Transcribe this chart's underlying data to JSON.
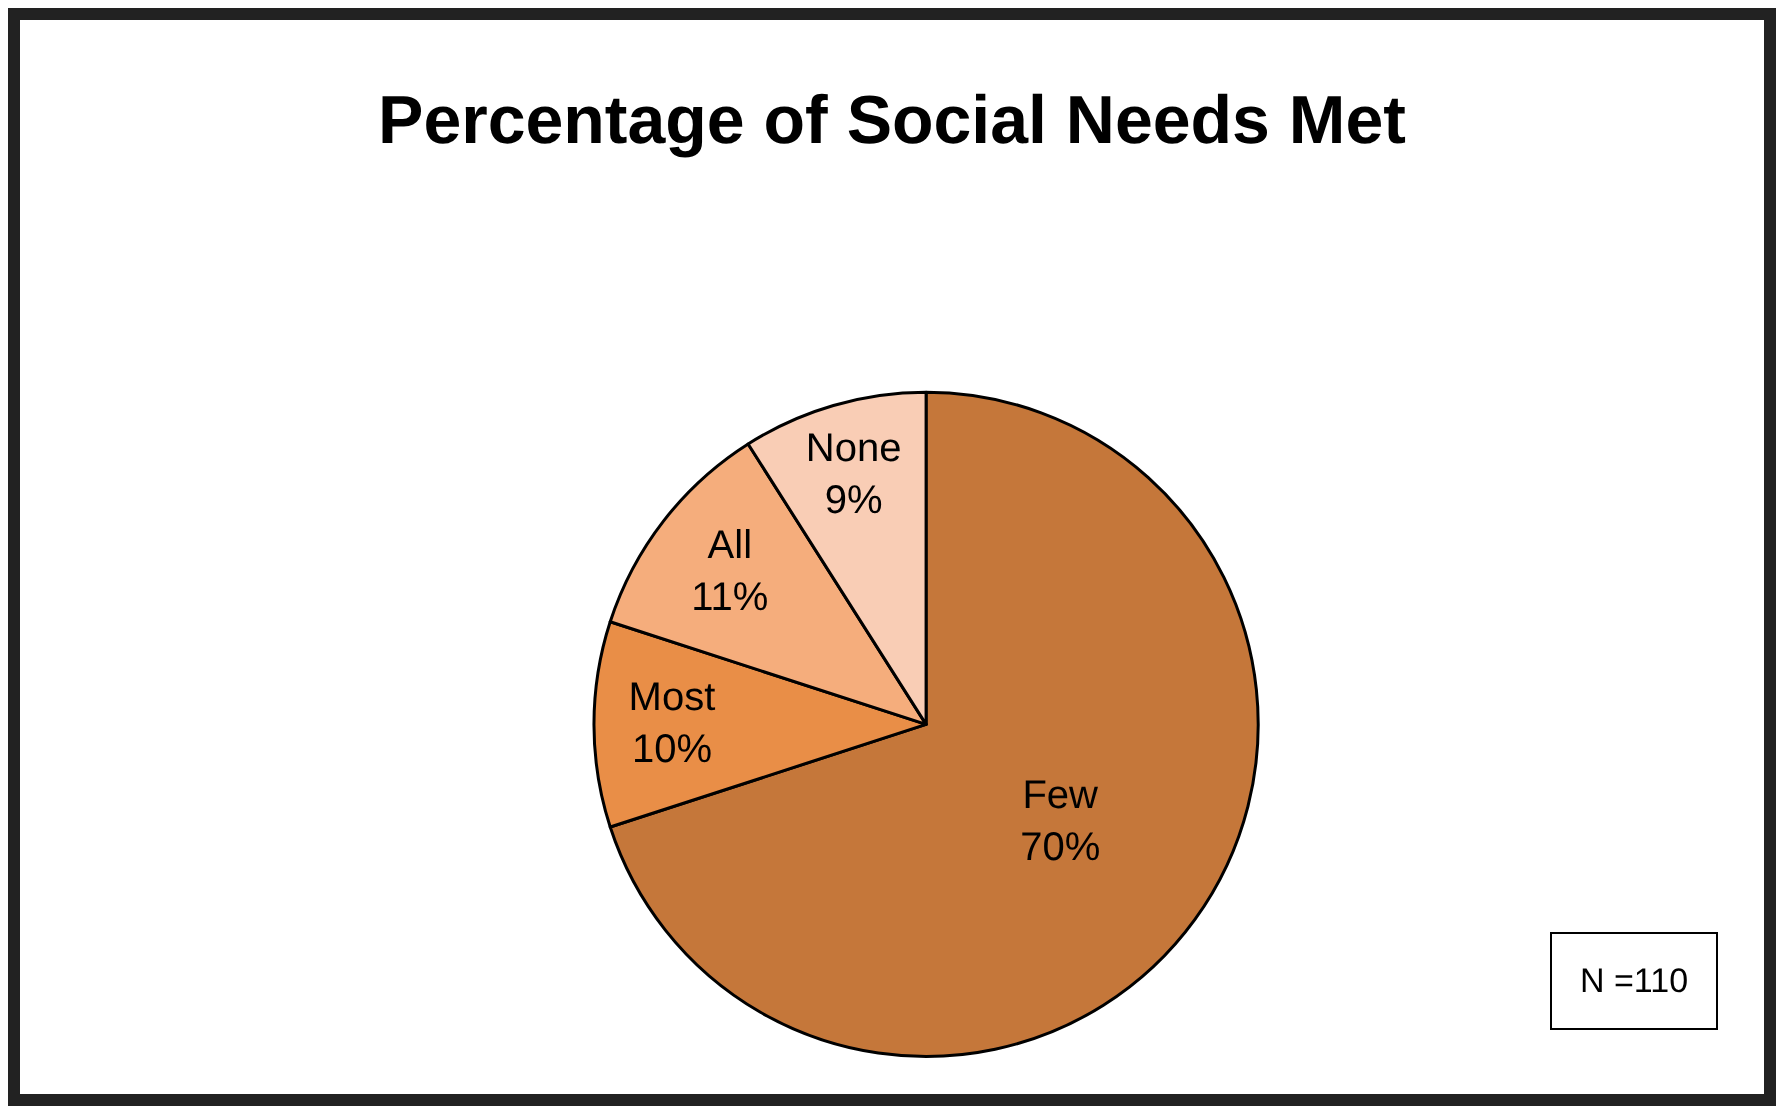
{
  "chart_data": {
    "type": "pie",
    "title": "Percentage of Social Needs Met",
    "categories": [
      "Few",
      "Most",
      "All",
      "None"
    ],
    "values": [
      70,
      10,
      11,
      9
    ],
    "value_labels": [
      "70%",
      "10%",
      "11%",
      "9%"
    ],
    "colors": [
      "#c5773a",
      "#e98e47",
      "#f5ad7c",
      "#f9cdb5"
    ],
    "legend": false,
    "annotations": [
      "N =110"
    ]
  }
}
